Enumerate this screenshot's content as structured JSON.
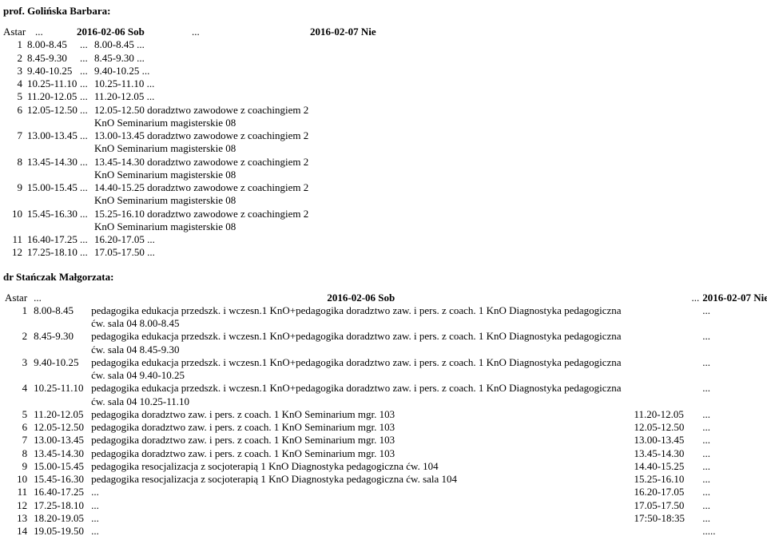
{
  "prof": {
    "title": "prof. Golińska Barbara:",
    "astar": "Astar",
    "dots": "...",
    "day1": "2016-02-06 Sob",
    "day2": "2016-02-07 Nie",
    "rows": [
      {
        "n": "1",
        "t1": "8.00-8.45",
        "d1": "...",
        "left": "8.00-8.45 ...",
        "t2": ""
      },
      {
        "n": "2",
        "t1": "8.45-9.30",
        "d1": "...",
        "left": "8.45-9.30 ...",
        "t2": ""
      },
      {
        "n": "3",
        "t1": "9.40-10.25",
        "d1": "...",
        "left": "9.40-10.25 ...",
        "t2": ""
      },
      {
        "n": "4",
        "t1": "10.25-11.10",
        "d1": "...",
        "left": "10.25-11.10 ...",
        "t2": ""
      },
      {
        "n": "5",
        "t1": "11.20-12.05",
        "d1": "...",
        "left": "11.20-12.05 ...",
        "t2": ""
      },
      {
        "n": "6",
        "t1": "12.05-12.50",
        "d1": "...",
        "left": "12.05-12.50 doradztwo zawodowe z coachingiem 2 KnO Seminarium magisterskie 08",
        "t2": ""
      },
      {
        "n": "7",
        "t1": "13.00-13.45",
        "d1": "...",
        "left": "13.00-13.45 doradztwo zawodowe z coachingiem 2 KnO Seminarium magisterskie 08",
        "t2": ""
      },
      {
        "n": "8",
        "t1": "13.45-14.30",
        "d1": "...",
        "left": "13.45-14.30 doradztwo zawodowe z coachingiem 2 KnO Seminarium magisterskie 08",
        "t2": ""
      },
      {
        "n": "9",
        "t1": "15.00-15.45",
        "d1": "...",
        "left": "14.40-15.25 doradztwo zawodowe z coachingiem 2 KnO Seminarium magisterskie 08",
        "t2": ""
      },
      {
        "n": "10",
        "t1": "15.45-16.30",
        "d1": "...",
        "left": "15.25-16.10 doradztwo zawodowe z coachingiem 2 KnO Seminarium magisterskie 08",
        "t2": ""
      },
      {
        "n": "11",
        "t1": "16.40-17.25",
        "d1": "...",
        "left": "16.20-17.05 ...",
        "t2": ""
      },
      {
        "n": "12",
        "t1": "17.25-18.10",
        "d1": "...",
        "left": "17.05-17.50 ...",
        "t2": ""
      }
    ]
  },
  "dr": {
    "title": "dr Stańczak Małgorzata:",
    "astar": "Astar",
    "dots": "...",
    "day1": "2016-02-06 Sob",
    "day2": "2016-02-07 Nie",
    "rows": [
      {
        "n": "1",
        "t": "8.00-8.45",
        "desc": "pedagogika edukacja przedszk. i wczesn.1 KnO+pedagogika doradztwo zaw. i pers. z coach. 1 KnO Diagnostyka pedagogiczna ćw. sala 04 8.00-8.45",
        "rt": "",
        "rd": "..."
      },
      {
        "n": "2",
        "t": "8.45-9.30",
        "desc": "pedagogika edukacja przedszk. i wczesn.1 KnO+pedagogika doradztwo zaw. i pers. z coach. 1 KnO Diagnostyka pedagogiczna ćw. sala 04 8.45-9.30",
        "rt": "",
        "rd": "..."
      },
      {
        "n": "3",
        "t": "9.40-10.25",
        "desc": "pedagogika edukacja przedszk. i wczesn.1 KnO+pedagogika doradztwo zaw. i pers. z coach. 1 KnO Diagnostyka pedagogiczna ćw. sala 04 9.40-10.25",
        "rt": "",
        "rd": "..."
      },
      {
        "n": "4",
        "t": "10.25-11.10",
        "desc": "pedagogika edukacja przedszk. i wczesn.1 KnO+pedagogika doradztwo zaw. i pers. z coach. 1 KnO Diagnostyka pedagogiczna ćw. sala 04 10.25-11.10",
        "rt": "",
        "rd": "..."
      },
      {
        "n": "5",
        "t": "11.20-12.05",
        "desc": "pedagogika doradztwo zaw. i pers. z coach. 1 KnO Seminarium mgr. 103",
        "rt": "11.20-12.05",
        "rd": "..."
      },
      {
        "n": "6",
        "t": "12.05-12.50",
        "desc": "pedagogika doradztwo zaw. i pers. z coach. 1 KnO Seminarium mgr. 103",
        "rt": "12.05-12.50",
        "rd": "..."
      },
      {
        "n": "7",
        "t": "13.00-13.45",
        "desc": "pedagogika doradztwo zaw. i pers. z coach. 1 KnO Seminarium mgr. 103",
        "rt": "13.00-13.45",
        "rd": "..."
      },
      {
        "n": "8",
        "t": "13.45-14.30",
        "desc": "pedagogika doradztwo zaw. i pers. z coach. 1 KnO Seminarium mgr. 103",
        "rt": "13.45-14.30",
        "rd": "..."
      },
      {
        "n": "9",
        "t": "15.00-15.45",
        "desc": "pedagogika resocjalizacja z socjoterapią 1 KnO Diagnostyka pedagogiczna ćw. 104",
        "rt": "14.40-15.25",
        "rd": "..."
      },
      {
        "n": "10",
        "t": "15.45-16.30",
        "desc": "pedagogika resocjalizacja z socjoterapią 1 KnO Diagnostyka pedagogiczna ćw. sala 104",
        "rt": "15.25-16.10",
        "rd": "..."
      },
      {
        "n": "11",
        "t": "16.40-17.25",
        "desc": "...",
        "rt": "16.20-17.05",
        "rd": "..."
      },
      {
        "n": "12",
        "t": "17.25-18.10",
        "desc": "...",
        "rt": "17.05-17.50",
        "rd": "..."
      },
      {
        "n": "13",
        "t": "18.20-19.05",
        "desc": "...",
        "rt": "17:50-18:35",
        "rd": "..."
      },
      {
        "n": "14",
        "t": "19.05-19.50",
        "desc": "...",
        "rt": "",
        "rd": "....."
      }
    ]
  }
}
